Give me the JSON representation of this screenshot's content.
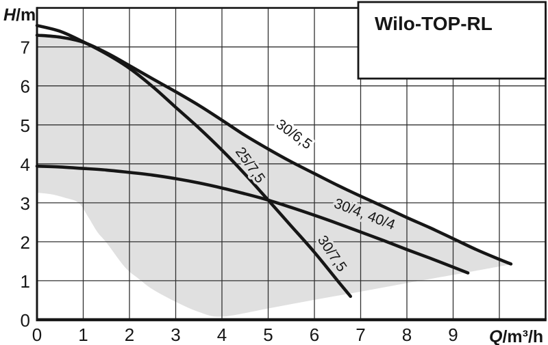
{
  "title_box": {
    "label": "Wilo-TOP-RL"
  },
  "axes": {
    "y_label": "H/m",
    "x_label": "Q/m³/h",
    "x_ticks": [
      0,
      1,
      2,
      3,
      4,
      5,
      6,
      7,
      8,
      9
    ],
    "y_ticks": [
      0,
      1,
      2,
      3,
      4,
      5,
      6,
      7
    ],
    "xlim": [
      0,
      11
    ],
    "ylim": [
      0,
      8
    ]
  },
  "colors": {
    "ink": "#161616",
    "grid": "#303030",
    "field_gray": "#e0e0e0",
    "background": "#ffffff"
  },
  "chart_data": {
    "type": "line",
    "title": "Wilo-TOP-RL",
    "xlabel": "Q/m³/h",
    "ylabel": "H/m",
    "xlim": [
      0,
      11
    ],
    "ylim": [
      0,
      8
    ],
    "grid": true,
    "legend_position": "none",
    "series": [
      {
        "id": "30-6-5",
        "name": "30/6,5",
        "labels": [
          {
            "text": "30/6,5",
            "x": 5.5,
            "y": 4.66,
            "angle": 36,
            "halo": "#ffffff"
          }
        ],
        "points": [
          [
            0,
            7.3
          ],
          [
            0.5,
            7.25
          ],
          [
            1,
            7.12
          ],
          [
            1.5,
            6.85
          ],
          [
            2,
            6.52
          ],
          [
            2.5,
            6.18
          ],
          [
            3,
            5.85
          ],
          [
            3.5,
            5.5
          ],
          [
            4,
            5.12
          ],
          [
            4.5,
            4.73
          ],
          [
            5,
            4.38
          ],
          [
            5.5,
            4.05
          ],
          [
            6,
            3.75
          ],
          [
            6.5,
            3.45
          ],
          [
            7,
            3.17
          ],
          [
            7.5,
            2.9
          ],
          [
            8,
            2.62
          ],
          [
            8.5,
            2.36
          ],
          [
            9,
            2.08
          ],
          [
            9.5,
            1.8
          ],
          [
            10,
            1.55
          ],
          [
            10.25,
            1.43
          ]
        ]
      },
      {
        "id": "25-7-5-30-7-5",
        "name": "25/7,5 / 30/7,5",
        "labels": [
          {
            "text": "25/7,5",
            "x": 4.53,
            "y": 3.9,
            "angle": 55,
            "halo": "#e0e0e0"
          },
          {
            "text": "30/7,5",
            "x": 6.3,
            "y": 1.63,
            "angle": 56,
            "halo": "#e0e0e0"
          }
        ],
        "points": [
          [
            0,
            7.55
          ],
          [
            0.5,
            7.4
          ],
          [
            1,
            7.13
          ],
          [
            1.5,
            6.82
          ],
          [
            2,
            6.45
          ],
          [
            2.5,
            5.98
          ],
          [
            3,
            5.45
          ],
          [
            3.5,
            4.92
          ],
          [
            4,
            4.35
          ],
          [
            4.5,
            3.73
          ],
          [
            5,
            3.07
          ],
          [
            5.5,
            2.4
          ],
          [
            6,
            1.73
          ],
          [
            6.5,
            1.0
          ],
          [
            6.78,
            0.6
          ]
        ]
      },
      {
        "id": "30-4-40-4",
        "name": "30/4, 40/4",
        "labels": [
          {
            "text": "30/4, 40/4",
            "x": 7.05,
            "y": 2.6,
            "angle": 21,
            "halo": "#e0e0e0"
          }
        ],
        "points": [
          [
            0,
            3.94
          ],
          [
            0.5,
            3.92
          ],
          [
            1,
            3.88
          ],
          [
            1.5,
            3.84
          ],
          [
            2,
            3.78
          ],
          [
            2.5,
            3.71
          ],
          [
            3,
            3.62
          ],
          [
            3.5,
            3.51
          ],
          [
            4,
            3.38
          ],
          [
            4.5,
            3.23
          ],
          [
            5,
            3.07
          ],
          [
            5.5,
            2.88
          ],
          [
            6,
            2.68
          ],
          [
            6.5,
            2.47
          ],
          [
            7,
            2.25
          ],
          [
            7.5,
            2.03
          ],
          [
            8,
            1.8
          ],
          [
            8.5,
            1.58
          ],
          [
            9,
            1.35
          ],
          [
            9.32,
            1.2
          ]
        ]
      }
    ],
    "operating_field": {
      "description": "gray shaded operating range; upper boundary follows curve 30/6,5",
      "upper_boundary_follows": "30-6-5",
      "lower_boundary": [
        [
          0,
          3.26
        ],
        [
          0.3,
          3.22
        ],
        [
          0.6,
          3.13
        ],
        [
          0.9,
          3.0
        ],
        [
          1.1,
          2.65
        ],
        [
          1.3,
          2.26
        ],
        [
          1.5,
          1.98
        ],
        [
          1.9,
          1.35
        ],
        [
          2.2,
          1.05
        ],
        [
          2.5,
          0.78
        ],
        [
          3,
          0.46
        ],
        [
          3.5,
          0.2
        ],
        [
          4,
          0.08
        ],
        [
          5,
          0.29
        ],
        [
          6,
          0.51
        ],
        [
          7,
          0.72
        ],
        [
          8,
          0.94
        ],
        [
          9,
          1.15
        ],
        [
          9.6,
          1.28
        ],
        [
          10.25,
          1.42
        ]
      ]
    }
  }
}
